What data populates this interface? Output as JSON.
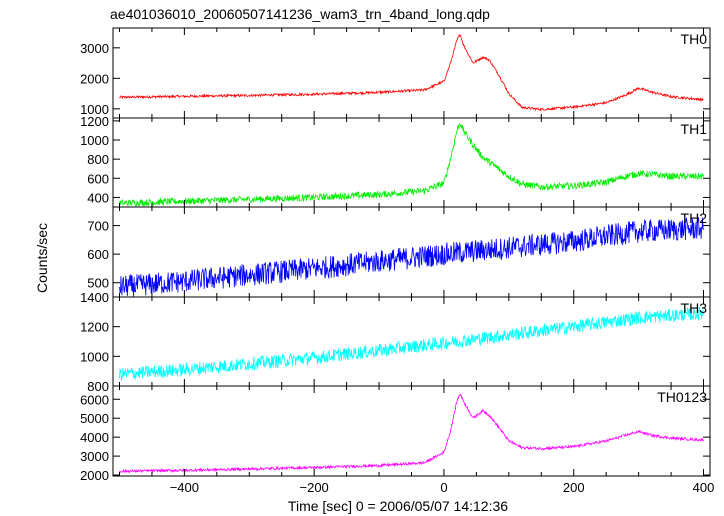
{
  "title": "ae401036010_20060507141236_wam3_trn_4band_long.qdp",
  "ylabel": "Counts/sec",
  "xlabel": "Time [sec] 0 = 2006/05/07 14:12:36",
  "x_ticks": [
    -400,
    -200,
    0,
    200,
    400
  ],
  "chart_data": [
    {
      "type": "line",
      "name": "TH0",
      "color": "#ff0000",
      "xlim": [
        -510,
        410
      ],
      "ylim": [
        700,
        3650
      ],
      "y_ticks": [
        1000,
        2000,
        3000
      ],
      "x": [
        -500,
        -400,
        -300,
        -200,
        -100,
        -30,
        0,
        10,
        20,
        25,
        30,
        45,
        60,
        70,
        85,
        100,
        120,
        150,
        200,
        250,
        280,
        300,
        320,
        350,
        400
      ],
      "values": [
        1380,
        1410,
        1440,
        1480,
        1540,
        1620,
        1900,
        2500,
        3250,
        3450,
        3100,
        2500,
        2700,
        2600,
        2100,
        1500,
        1050,
        980,
        1060,
        1200,
        1450,
        1680,
        1550,
        1400,
        1300
      ],
      "noise": 40
    },
    {
      "type": "line",
      "name": "TH1",
      "color": "#00ee00",
      "xlim": [
        -510,
        410
      ],
      "ylim": [
        300,
        1230
      ],
      "y_ticks": [
        400,
        600,
        800,
        1000,
        1200
      ],
      "x": [
        -500,
        -400,
        -300,
        -200,
        -100,
        -30,
        0,
        10,
        20,
        25,
        30,
        45,
        60,
        80,
        100,
        120,
        150,
        200,
        250,
        280,
        300,
        320,
        350,
        400
      ],
      "values": [
        340,
        360,
        380,
        400,
        430,
        470,
        550,
        800,
        1100,
        1180,
        1100,
        950,
        820,
        720,
        620,
        540,
        510,
        520,
        560,
        620,
        650,
        640,
        620,
        620
      ],
      "noise": 35
    },
    {
      "type": "line",
      "name": "TH2",
      "color": "#0000ff",
      "xlim": [
        -510,
        410
      ],
      "ylim": [
        450,
        765
      ],
      "y_ticks": [
        500,
        600,
        700
      ],
      "x": [
        -500,
        -400,
        -200,
        0,
        200,
        300,
        400
      ],
      "values": [
        485,
        505,
        550,
        600,
        645,
        680,
        690
      ],
      "noise": 40
    },
    {
      "type": "line",
      "name": "TH3",
      "color": "#00ffff",
      "xlim": [
        -510,
        410
      ],
      "ylim": [
        800,
        1400
      ],
      "y_ticks": [
        800,
        1000,
        1200,
        1400
      ],
      "x": [
        -500,
        -400,
        -200,
        0,
        200,
        300,
        400
      ],
      "values": [
        880,
        910,
        990,
        1090,
        1200,
        1260,
        1290
      ],
      "noise": 45
    },
    {
      "type": "line",
      "name": "TH0123",
      "color": "#ff00ff",
      "xlim": [
        -510,
        410
      ],
      "ylim": [
        1950,
        6700
      ],
      "y_ticks": [
        2000,
        3000,
        4000,
        5000,
        6000
      ],
      "x": [
        -500,
        -400,
        -300,
        -200,
        -100,
        -30,
        0,
        10,
        20,
        25,
        30,
        45,
        60,
        70,
        85,
        100,
        120,
        150,
        200,
        250,
        280,
        300,
        320,
        350,
        400
      ],
      "values": [
        2200,
        2250,
        2320,
        2400,
        2500,
        2650,
        3200,
        4300,
        5900,
        6300,
        5900,
        5000,
        5400,
        5150,
        4500,
        3800,
        3450,
        3400,
        3500,
        3800,
        4100,
        4300,
        4100,
        3950,
        3850
      ],
      "noise": 70
    }
  ]
}
